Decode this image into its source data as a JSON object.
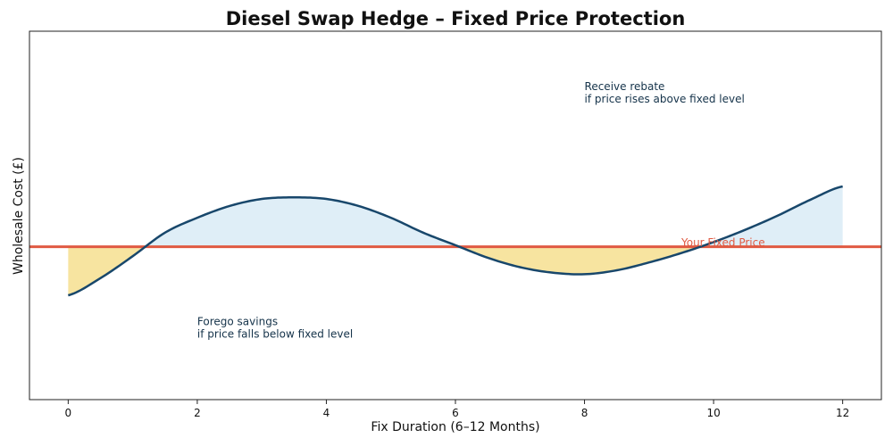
{
  "chart_data": {
    "type": "line",
    "title": "Diesel Swap Hedge – Fixed Price Protection",
    "xlabel": "Fix Duration (6–12 Months)",
    "ylabel": "Wholesale Cost (£)",
    "xlim": [
      -0.6,
      12.6
    ],
    "ylim": [
      -1.95,
      2.75
    ],
    "x_ticks": [
      0,
      2,
      4,
      6,
      8,
      10,
      12
    ],
    "y_ticks_shown": false,
    "grid": false,
    "fixed_price": 0,
    "fixed_price_label": "Your Fixed Price",
    "series": [
      {
        "x": [
          0,
          0.5,
          1,
          1.5,
          2,
          2.5,
          3,
          3.5,
          4,
          4.5,
          5,
          5.5,
          6,
          6.5,
          7,
          7.5,
          8,
          8.5,
          9,
          9.5,
          10,
          10.5,
          11,
          11.5,
          12
        ],
        "values": [
          -0.62,
          -0.4,
          -0.12,
          0.18,
          0.37,
          0.52,
          0.61,
          0.63,
          0.61,
          0.52,
          0.37,
          0.18,
          0.02,
          -0.14,
          -0.26,
          -0.33,
          -0.35,
          -0.3,
          -0.2,
          -0.08,
          0.06,
          0.22,
          0.4,
          0.6,
          0.77
        ]
      }
    ],
    "annotations": [
      {
        "lines": [
          "Receive rebate",
          "if price rises above fixed level"
        ],
        "x": 8.0,
        "y": 2.0
      },
      {
        "lines": [
          "Forego savings",
          "if price falls below fixed level"
        ],
        "x": 2.0,
        "y": -1.0
      }
    ],
    "colors": {
      "line": "#18476b",
      "fixed": "#e05a42",
      "above_fill": "#dfeef7",
      "below_fill": "#f7e4a0",
      "annotation_text": "#15334a"
    }
  }
}
